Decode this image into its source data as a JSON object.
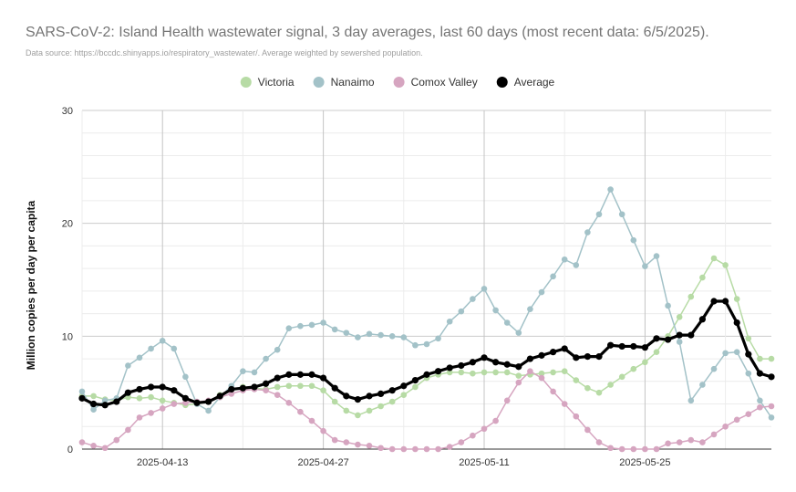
{
  "header": {
    "title": "SARS-CoV-2: Island Health wastewater signal, 3 day averages, last 60 days (most recent data: 6/5/2025).",
    "subtitle": "Data source: https://bccdc.shinyapps.io/respiratory_wastewater/. Average weighted by sewershed population."
  },
  "chart_data": {
    "type": "line",
    "title": "SARS-CoV-2: Island Health wastewater signal, 3 day averages, last 60 days (most recent data: 6/5/2025).",
    "ylabel": "Million copies per day per capita",
    "ylim": [
      0,
      30
    ],
    "yticks": [
      "0",
      "10",
      "20",
      "30"
    ],
    "xlim": [
      "2025-04-06",
      "2025-06-05"
    ],
    "xticks": [
      {
        "date": "2025-04-13",
        "label": "2025-04-13"
      },
      {
        "date": "2025-04-27",
        "label": "2025-04-27"
      },
      {
        "date": "2025-05-11",
        "label": "2025-05-11"
      },
      {
        "date": "2025-05-25",
        "label": "2025-05-25"
      }
    ],
    "grid": true,
    "legend_position": "top",
    "x": [
      "2025-04-06",
      "2025-04-07",
      "2025-04-08",
      "2025-04-09",
      "2025-04-10",
      "2025-04-11",
      "2025-04-12",
      "2025-04-13",
      "2025-04-14",
      "2025-04-15",
      "2025-04-16",
      "2025-04-17",
      "2025-04-18",
      "2025-04-19",
      "2025-04-20",
      "2025-04-21",
      "2025-04-22",
      "2025-04-23",
      "2025-04-24",
      "2025-04-25",
      "2025-04-26",
      "2025-04-27",
      "2025-04-28",
      "2025-04-29",
      "2025-04-30",
      "2025-05-01",
      "2025-05-02",
      "2025-05-03",
      "2025-05-04",
      "2025-05-05",
      "2025-05-06",
      "2025-05-07",
      "2025-05-08",
      "2025-05-09",
      "2025-05-10",
      "2025-05-11",
      "2025-05-12",
      "2025-05-13",
      "2025-05-14",
      "2025-05-15",
      "2025-05-16",
      "2025-05-17",
      "2025-05-18",
      "2025-05-19",
      "2025-05-20",
      "2025-05-21",
      "2025-05-22",
      "2025-05-23",
      "2025-05-24",
      "2025-05-25",
      "2025-05-26",
      "2025-05-27",
      "2025-05-28",
      "2025-05-29",
      "2025-05-30",
      "2025-05-31",
      "2025-06-01",
      "2025-06-02",
      "2025-06-03",
      "2025-06-04",
      "2025-06-05"
    ],
    "series": [
      {
        "name": "Victoria",
        "color": "#b7dba5",
        "width": 1.5,
        "values": [
          4.7,
          4.7,
          4.4,
          4.3,
          4.6,
          4.5,
          4.6,
          4.3,
          4.1,
          3.9,
          4.0,
          4.2,
          4.8,
          5.3,
          5.5,
          5.4,
          5.3,
          5.5,
          5.6,
          5.6,
          5.6,
          5.2,
          4.2,
          3.4,
          3.0,
          3.4,
          3.8,
          4.2,
          4.8,
          5.5,
          6.3,
          6.6,
          6.8,
          6.8,
          6.7,
          6.8,
          6.8,
          6.8,
          6.5,
          6.6,
          6.7,
          6.8,
          6.9,
          6.1,
          5.4,
          5.0,
          5.7,
          6.4,
          7.1,
          7.7,
          8.6,
          10.0,
          11.7,
          13.5,
          15.2,
          16.9,
          16.3,
          13.3,
          9.8,
          8.0,
          8.0
        ]
      },
      {
        "name": "Nanaimo",
        "color": "#a3c2c8",
        "width": 1.5,
        "values": [
          5.1,
          3.5,
          4.3,
          4.5,
          7.4,
          8.1,
          8.9,
          9.6,
          8.9,
          6.4,
          4.0,
          3.4,
          4.6,
          5.6,
          6.9,
          6.8,
          8.0,
          8.8,
          10.7,
          10.9,
          11.0,
          11.2,
          10.6,
          10.3,
          9.9,
          10.2,
          10.1,
          10.0,
          9.9,
          9.2,
          9.3,
          9.8,
          11.3,
          12.2,
          13.3,
          14.2,
          12.3,
          11.2,
          10.3,
          12.4,
          13.9,
          15.3,
          16.8,
          16.3,
          19.2,
          20.8,
          23.0,
          20.8,
          18.5,
          16.2,
          17.1,
          12.7,
          9.5,
          4.3,
          5.7,
          7.1,
          8.5,
          8.6,
          6.7,
          4.3,
          2.8
        ]
      },
      {
        "name": "Comox Valley",
        "color": "#d6a5c0",
        "width": 1.5,
        "values": [
          0.6,
          0.3,
          0.1,
          0.8,
          1.7,
          2.8,
          3.2,
          3.6,
          4.0,
          4.1,
          4.2,
          4.3,
          4.6,
          4.9,
          5.2,
          5.3,
          5.2,
          4.8,
          4.1,
          3.3,
          2.5,
          1.6,
          0.8,
          0.6,
          0.4,
          0.3,
          0.1,
          0.0,
          0.0,
          0.0,
          0.0,
          0.0,
          0.2,
          0.6,
          1.2,
          1.8,
          2.5,
          4.3,
          5.9,
          6.9,
          6.3,
          5.1,
          4.0,
          2.9,
          1.7,
          0.6,
          0.1,
          0.0,
          0.0,
          0.0,
          0.0,
          0.5,
          0.6,
          0.8,
          0.6,
          1.3,
          2.0,
          2.6,
          3.1,
          3.7,
          3.8
        ]
      },
      {
        "name": "Average",
        "color": "#000000",
        "width": 3.2,
        "values": [
          4.5,
          4.0,
          3.9,
          4.2,
          5.0,
          5.3,
          5.5,
          5.5,
          5.2,
          4.5,
          4.1,
          4.2,
          4.7,
          5.3,
          5.4,
          5.5,
          5.8,
          6.3,
          6.6,
          6.6,
          6.6,
          6.3,
          5.4,
          4.7,
          4.4,
          4.7,
          4.9,
          5.2,
          5.6,
          6.1,
          6.6,
          6.9,
          7.2,
          7.4,
          7.7,
          8.1,
          7.7,
          7.5,
          7.3,
          8.0,
          8.3,
          8.6,
          8.9,
          8.1,
          8.2,
          8.2,
          9.2,
          9.1,
          9.1,
          9.0,
          9.8,
          9.7,
          10.1,
          10.1,
          11.5,
          13.1,
          13.1,
          11.2,
          8.4,
          6.7,
          6.4
        ]
      }
    ]
  }
}
